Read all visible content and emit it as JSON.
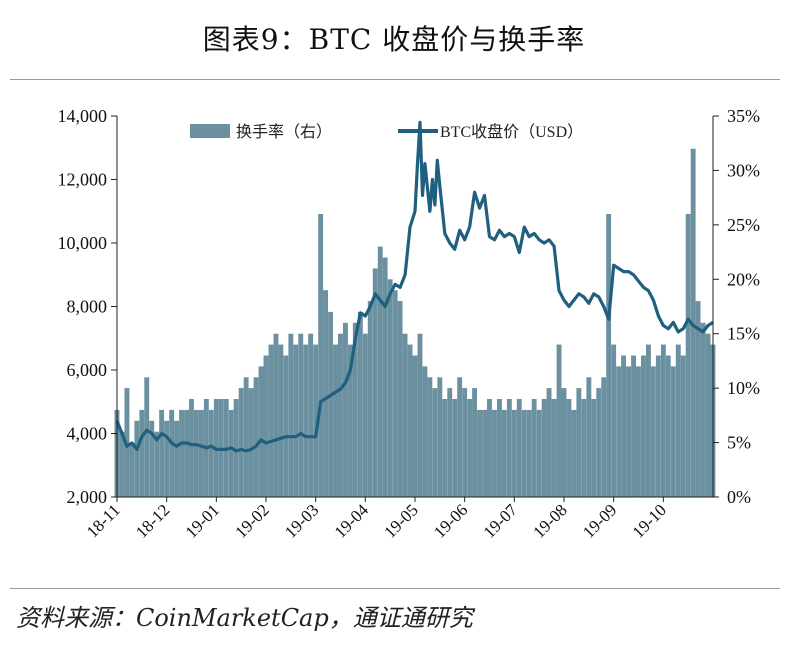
{
  "title": "图表9：BTC 收盘价与换手率",
  "source": "资料来源：CoinMarketCap，通证通研究",
  "colors": {
    "bars": "#6b909f",
    "line": "#1f5f7f",
    "axis": "#222222",
    "rule": "#9a9a9a"
  },
  "chart_data": {
    "type": "bar+line",
    "legend": {
      "placement": "top-center",
      "bar_label": "换手率（右）",
      "line_label": "BTC收盘价（USD）"
    },
    "x_tick_labels": [
      "18-11",
      "18-12",
      "19-01",
      "19-02",
      "19-03",
      "19-04",
      "19-05",
      "19-06",
      "19-07",
      "19-08",
      "19-09",
      "19-10"
    ],
    "x_start_month_index": 0,
    "x_end_month_index": 12.0,
    "y_left": {
      "min": 2000,
      "max": 14000,
      "ticks": [
        "2,000",
        "4,000",
        "6,000",
        "8,000",
        "10,000",
        "12,000",
        "14,000"
      ]
    },
    "y_right": {
      "min": 0,
      "max": 35,
      "ticks": [
        "0%",
        "5%",
        "10%",
        "15%",
        "20%",
        "25%",
        "30%",
        "35%"
      ]
    },
    "series": [
      {
        "name": "BTC收盘价（USD）",
        "axis": "left",
        "kind": "line",
        "points": [
          [
            0.0,
            4400
          ],
          [
            0.1,
            4000
          ],
          [
            0.2,
            3600
          ],
          [
            0.3,
            3700
          ],
          [
            0.4,
            3500
          ],
          [
            0.5,
            3900
          ],
          [
            0.6,
            4100
          ],
          [
            0.7,
            4000
          ],
          [
            0.8,
            3800
          ],
          [
            0.9,
            4000
          ],
          [
            1.0,
            3900
          ],
          [
            1.1,
            3700
          ],
          [
            1.2,
            3600
          ],
          [
            1.3,
            3700
          ],
          [
            1.4,
            3700
          ],
          [
            1.5,
            3650
          ],
          [
            1.6,
            3650
          ],
          [
            1.7,
            3600
          ],
          [
            1.8,
            3550
          ],
          [
            1.9,
            3600
          ],
          [
            2.0,
            3500
          ],
          [
            2.1,
            3500
          ],
          [
            2.2,
            3500
          ],
          [
            2.3,
            3550
          ],
          [
            2.4,
            3450
          ],
          [
            2.5,
            3500
          ],
          [
            2.6,
            3450
          ],
          [
            2.7,
            3500
          ],
          [
            2.8,
            3600
          ],
          [
            2.9,
            3800
          ],
          [
            3.0,
            3700
          ],
          [
            3.1,
            3750
          ],
          [
            3.2,
            3800
          ],
          [
            3.3,
            3850
          ],
          [
            3.4,
            3900
          ],
          [
            3.5,
            3900
          ],
          [
            3.6,
            3900
          ],
          [
            3.7,
            4000
          ],
          [
            3.8,
            3900
          ],
          [
            3.9,
            3900
          ],
          [
            4.0,
            3900
          ],
          [
            4.1,
            5000
          ],
          [
            4.2,
            5100
          ],
          [
            4.3,
            5200
          ],
          [
            4.4,
            5300
          ],
          [
            4.5,
            5400
          ],
          [
            4.6,
            5600
          ],
          [
            4.7,
            6000
          ],
          [
            4.8,
            7000
          ],
          [
            4.9,
            7800
          ],
          [
            5.0,
            7700
          ],
          [
            5.1,
            8000
          ],
          [
            5.2,
            8400
          ],
          [
            5.3,
            8200
          ],
          [
            5.4,
            8000
          ],
          [
            5.5,
            8400
          ],
          [
            5.6,
            8700
          ],
          [
            5.7,
            8600
          ],
          [
            5.8,
            9000
          ],
          [
            5.9,
            10500
          ],
          [
            6.0,
            11000
          ],
          [
            6.05,
            12500
          ],
          [
            6.1,
            13800
          ],
          [
            6.15,
            11500
          ],
          [
            6.2,
            12500
          ],
          [
            6.3,
            11000
          ],
          [
            6.35,
            12000
          ],
          [
            6.4,
            11200
          ],
          [
            6.45,
            12600
          ],
          [
            6.5,
            11800
          ],
          [
            6.6,
            10300
          ],
          [
            6.7,
            10000
          ],
          [
            6.8,
            9800
          ],
          [
            6.9,
            10400
          ],
          [
            7.0,
            10100
          ],
          [
            7.1,
            10500
          ],
          [
            7.2,
            11600
          ],
          [
            7.3,
            11100
          ],
          [
            7.4,
            11500
          ],
          [
            7.5,
            10200
          ],
          [
            7.6,
            10100
          ],
          [
            7.7,
            10400
          ],
          [
            7.8,
            10200
          ],
          [
            7.9,
            10300
          ],
          [
            8.0,
            10200
          ],
          [
            8.1,
            9700
          ],
          [
            8.2,
            10500
          ],
          [
            8.3,
            10200
          ],
          [
            8.4,
            10300
          ],
          [
            8.5,
            10100
          ],
          [
            8.6,
            10000
          ],
          [
            8.7,
            10100
          ],
          [
            8.8,
            9900
          ],
          [
            8.9,
            8500
          ],
          [
            9.0,
            8200
          ],
          [
            9.1,
            8000
          ],
          [
            9.2,
            8200
          ],
          [
            9.3,
            8400
          ],
          [
            9.4,
            8300
          ],
          [
            9.5,
            8100
          ],
          [
            9.6,
            8400
          ],
          [
            9.7,
            8300
          ],
          [
            9.8,
            8000
          ],
          [
            9.9,
            7600
          ],
          [
            10.0,
            9300
          ],
          [
            10.1,
            9200
          ],
          [
            10.2,
            9100
          ],
          [
            10.3,
            9100
          ],
          [
            10.4,
            9000
          ],
          [
            10.5,
            8800
          ],
          [
            10.6,
            8600
          ],
          [
            10.7,
            8500
          ],
          [
            10.8,
            8200
          ],
          [
            10.9,
            7700
          ],
          [
            11.0,
            7400
          ],
          [
            11.1,
            7300
          ],
          [
            11.2,
            7500
          ],
          [
            11.3,
            7200
          ],
          [
            11.4,
            7300
          ],
          [
            11.5,
            7600
          ],
          [
            11.6,
            7400
          ],
          [
            11.7,
            7300
          ],
          [
            11.8,
            7200
          ],
          [
            11.9,
            7400
          ],
          [
            12.0,
            7500
          ]
        ]
      },
      {
        "name": "换手率（右）",
        "axis": "right",
        "kind": "bar",
        "points": [
          [
            0.0,
            8
          ],
          [
            0.1,
            6
          ],
          [
            0.2,
            10
          ],
          [
            0.3,
            5
          ],
          [
            0.4,
            7
          ],
          [
            0.5,
            8
          ],
          [
            0.6,
            11
          ],
          [
            0.7,
            7
          ],
          [
            0.8,
            6
          ],
          [
            0.9,
            8
          ],
          [
            1.0,
            7
          ],
          [
            1.1,
            8
          ],
          [
            1.2,
            7
          ],
          [
            1.3,
            8
          ],
          [
            1.4,
            8
          ],
          [
            1.5,
            9
          ],
          [
            1.6,
            8
          ],
          [
            1.7,
            8
          ],
          [
            1.8,
            9
          ],
          [
            1.9,
            8
          ],
          [
            2.0,
            9
          ],
          [
            2.1,
            9
          ],
          [
            2.2,
            9
          ],
          [
            2.3,
            8
          ],
          [
            2.4,
            9
          ],
          [
            2.5,
            10
          ],
          [
            2.6,
            11
          ],
          [
            2.7,
            10
          ],
          [
            2.8,
            11
          ],
          [
            2.9,
            12
          ],
          [
            3.0,
            13
          ],
          [
            3.1,
            14
          ],
          [
            3.2,
            15
          ],
          [
            3.3,
            14
          ],
          [
            3.4,
            13
          ],
          [
            3.5,
            15
          ],
          [
            3.6,
            14
          ],
          [
            3.7,
            15
          ],
          [
            3.8,
            14
          ],
          [
            3.9,
            15
          ],
          [
            4.0,
            14
          ],
          [
            4.1,
            26
          ],
          [
            4.2,
            19
          ],
          [
            4.3,
            17
          ],
          [
            4.4,
            14
          ],
          [
            4.5,
            15
          ],
          [
            4.6,
            16
          ],
          [
            4.7,
            14
          ],
          [
            4.8,
            16
          ],
          [
            4.9,
            17
          ],
          [
            5.0,
            15
          ],
          [
            5.1,
            18
          ],
          [
            5.2,
            21
          ],
          [
            5.3,
            23
          ],
          [
            5.4,
            22
          ],
          [
            5.5,
            20
          ],
          [
            5.6,
            19
          ],
          [
            5.7,
            18
          ],
          [
            5.8,
            15
          ],
          [
            5.9,
            14
          ],
          [
            6.0,
            13
          ],
          [
            6.1,
            15
          ],
          [
            6.2,
            12
          ],
          [
            6.3,
            11
          ],
          [
            6.4,
            10
          ],
          [
            6.5,
            11
          ],
          [
            6.6,
            9
          ],
          [
            6.7,
            10
          ],
          [
            6.8,
            9
          ],
          [
            6.9,
            11
          ],
          [
            7.0,
            10
          ],
          [
            7.1,
            9
          ],
          [
            7.2,
            10
          ],
          [
            7.3,
            8
          ],
          [
            7.4,
            8
          ],
          [
            7.5,
            9
          ],
          [
            7.6,
            8
          ],
          [
            7.7,
            9
          ],
          [
            7.8,
            8
          ],
          [
            7.9,
            9
          ],
          [
            8.0,
            8
          ],
          [
            8.1,
            9
          ],
          [
            8.2,
            8
          ],
          [
            8.3,
            8
          ],
          [
            8.4,
            9
          ],
          [
            8.5,
            8
          ],
          [
            8.6,
            9
          ],
          [
            8.7,
            10
          ],
          [
            8.8,
            9
          ],
          [
            8.9,
            14
          ],
          [
            9.0,
            10
          ],
          [
            9.1,
            9
          ],
          [
            9.2,
            8
          ],
          [
            9.3,
            10
          ],
          [
            9.4,
            9
          ],
          [
            9.5,
            11
          ],
          [
            9.6,
            9
          ],
          [
            9.7,
            10
          ],
          [
            9.8,
            11
          ],
          [
            9.9,
            26
          ],
          [
            10.0,
            14
          ],
          [
            10.1,
            12
          ],
          [
            10.2,
            13
          ],
          [
            10.3,
            12
          ],
          [
            10.4,
            13
          ],
          [
            10.5,
            12
          ],
          [
            10.6,
            13
          ],
          [
            10.7,
            14
          ],
          [
            10.8,
            12
          ],
          [
            10.9,
            13
          ],
          [
            11.0,
            14
          ],
          [
            11.1,
            13
          ],
          [
            11.2,
            12
          ],
          [
            11.3,
            14
          ],
          [
            11.4,
            13
          ],
          [
            11.5,
            26
          ],
          [
            11.6,
            32
          ],
          [
            11.7,
            18
          ],
          [
            11.8,
            16
          ],
          [
            11.9,
            15
          ],
          [
            12.0,
            14
          ]
        ]
      }
    ]
  }
}
